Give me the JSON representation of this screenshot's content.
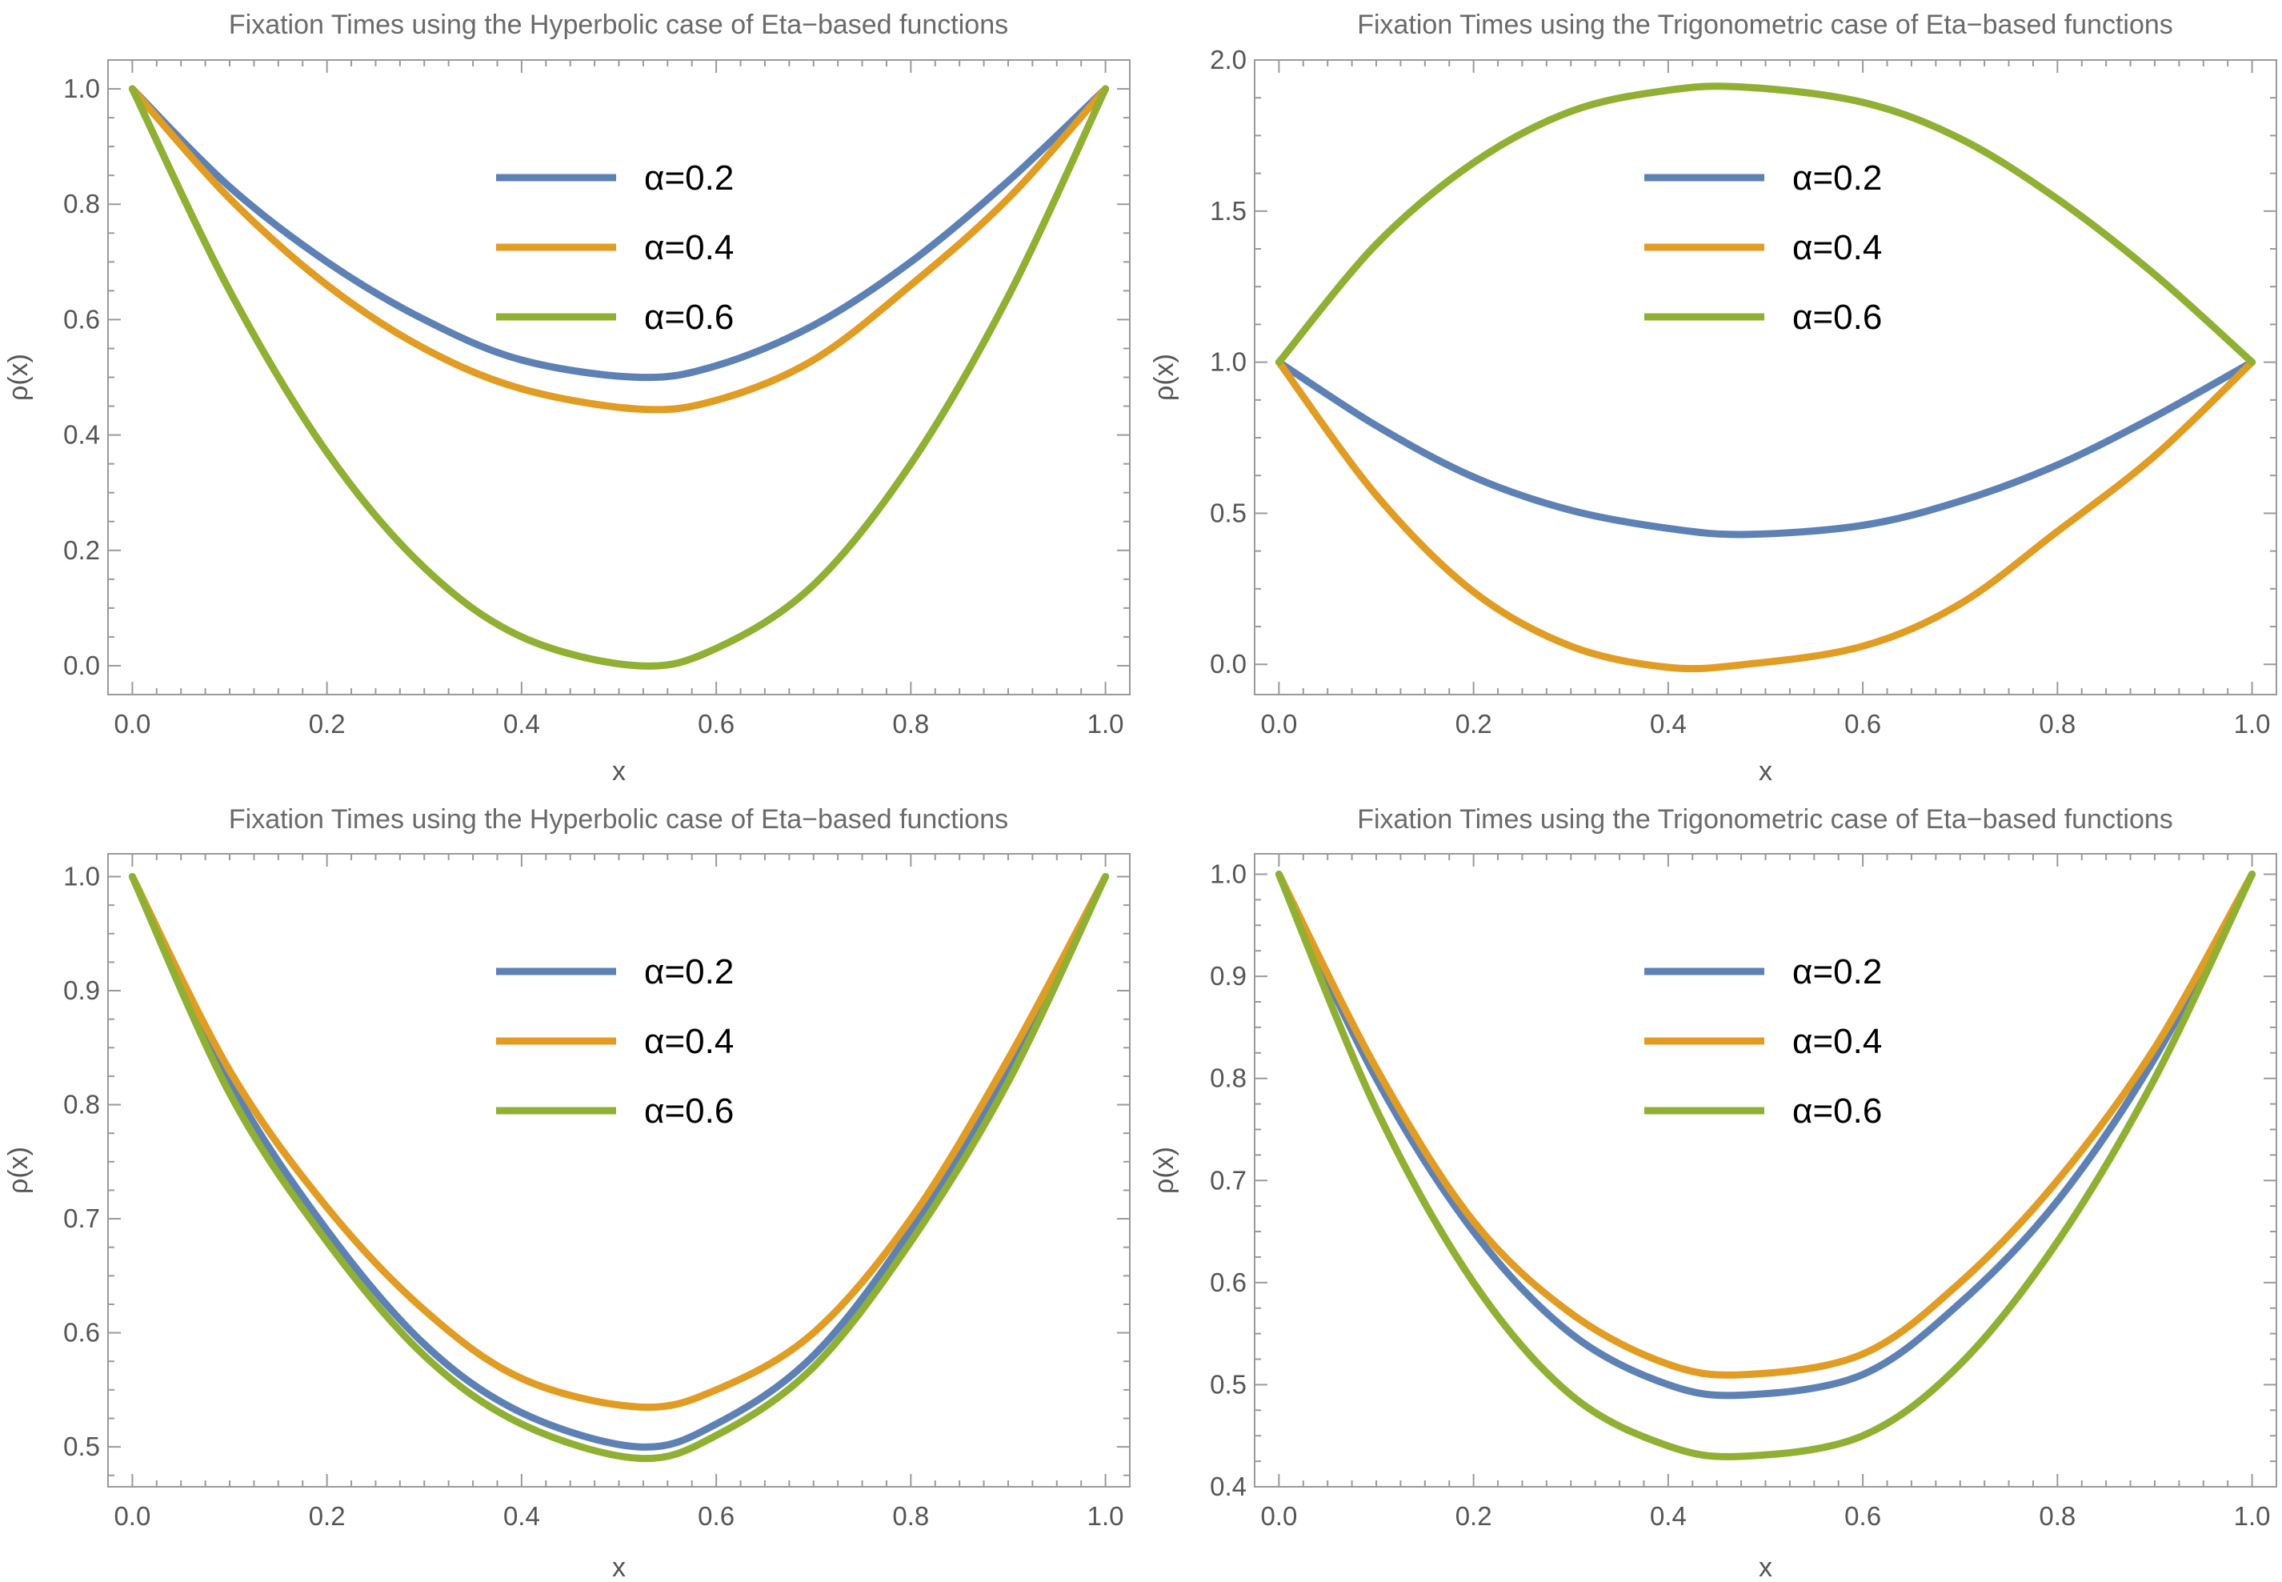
{
  "chart_data": [
    {
      "type": "line",
      "title": "Fixation Times using the Hyperbolic case of Eta−based functions",
      "xlabel": "x",
      "ylabel": "ρ(x)",
      "xlim": [
        -0.025,
        1.025
      ],
      "ylim": [
        -0.05,
        1.05
      ],
      "xticks": [
        "0.0",
        "0.2",
        "0.4",
        "0.6",
        "0.8",
        "1.0"
      ],
      "yticks": [
        "0.0",
        "0.2",
        "0.4",
        "0.6",
        "0.8",
        "1.0"
      ],
      "ytick_values": [
        0,
        0.2,
        0.4,
        0.6,
        0.8,
        1.0
      ],
      "legend_position": "upper-center",
      "series": [
        {
          "name": "α=0.2",
          "color": "#5E81B5",
          "x": [
            0,
            0.1,
            0.2,
            0.3,
            0.4,
            0.52,
            0.6,
            0.7,
            0.8,
            0.9,
            1.0
          ],
          "values": [
            1.0,
            0.83,
            0.7,
            0.6,
            0.53,
            0.5,
            0.52,
            0.59,
            0.7,
            0.84,
            1.0
          ]
        },
        {
          "name": "α=0.4",
          "color": "#E19C24",
          "x": [
            0,
            0.1,
            0.2,
            0.3,
            0.4,
            0.52,
            0.6,
            0.7,
            0.8,
            0.9,
            1.0
          ],
          "values": [
            1.0,
            0.81,
            0.66,
            0.55,
            0.48,
            0.445,
            0.46,
            0.53,
            0.66,
            0.81,
            1.0
          ]
        },
        {
          "name": "α=0.6",
          "color": "#8FB032",
          "x": [
            0,
            0.1,
            0.2,
            0.3,
            0.4,
            0.52,
            0.6,
            0.7,
            0.8,
            0.9,
            1.0
          ],
          "values": [
            1.0,
            0.65,
            0.37,
            0.17,
            0.05,
            0.0,
            0.03,
            0.14,
            0.35,
            0.64,
            1.0
          ]
        }
      ]
    },
    {
      "type": "line",
      "title": "Fixation Times using the Trigonometric case of Eta−based functions",
      "xlabel": "x",
      "ylabel": "ρ(x)",
      "xlim": [
        -0.025,
        1.025
      ],
      "ylim": [
        -0.1,
        2.0
      ],
      "xticks": [
        "0.0",
        "0.2",
        "0.4",
        "0.6",
        "0.8",
        "1.0"
      ],
      "yticks": [
        "0.0",
        "0.5",
        "1.0",
        "1.5",
        "2.0"
      ],
      "ytick_values": [
        0,
        0.5,
        1.0,
        1.5,
        2.0
      ],
      "legend_position": "upper-center",
      "series": [
        {
          "name": "α=0.2",
          "color": "#5E81B5",
          "x": [
            0,
            0.1,
            0.2,
            0.3,
            0.4,
            0.48,
            0.6,
            0.7,
            0.8,
            0.9,
            1.0
          ],
          "values": [
            1.0,
            0.79,
            0.62,
            0.51,
            0.45,
            0.43,
            0.46,
            0.54,
            0.66,
            0.82,
            1.0
          ]
        },
        {
          "name": "α=0.4",
          "color": "#E19C24",
          "x": [
            0,
            0.1,
            0.2,
            0.3,
            0.4,
            0.48,
            0.6,
            0.7,
            0.8,
            0.9,
            1.0
          ],
          "values": [
            1.0,
            0.56,
            0.24,
            0.06,
            -0.01,
            0.0,
            0.06,
            0.2,
            0.44,
            0.69,
            1.0
          ]
        },
        {
          "name": "α=0.6",
          "color": "#8FB032",
          "x": [
            0,
            0.1,
            0.2,
            0.3,
            0.4,
            0.48,
            0.6,
            0.7,
            0.8,
            0.9,
            1.0
          ],
          "values": [
            1.0,
            1.39,
            1.66,
            1.83,
            1.9,
            1.91,
            1.86,
            1.74,
            1.54,
            1.29,
            1.0
          ]
        }
      ]
    },
    {
      "type": "line",
      "title": "Fixation Times using the Hyperbolic case of Eta−based functions",
      "xlabel": "x",
      "ylabel": "ρ(x)",
      "xlim": [
        -0.025,
        1.025
      ],
      "ylim": [
        0.465,
        1.02
      ],
      "xticks": [
        "0.0",
        "0.2",
        "0.4",
        "0.6",
        "0.8",
        "1.0"
      ],
      "yticks": [
        "0.5",
        "0.6",
        "0.7",
        "0.8",
        "0.9",
        "1.0"
      ],
      "ytick_values": [
        0.5,
        0.6,
        0.7,
        0.8,
        0.9,
        1.0
      ],
      "legend_position": "upper-center",
      "series": [
        {
          "name": "α=0.2",
          "color": "#5E81B5",
          "x": [
            0,
            0.1,
            0.2,
            0.3,
            0.4,
            0.52,
            0.6,
            0.7,
            0.8,
            0.9,
            1.0
          ],
          "values": [
            1.0,
            0.82,
            0.69,
            0.59,
            0.53,
            0.5,
            0.52,
            0.58,
            0.69,
            0.83,
            1.0
          ]
        },
        {
          "name": "α=0.4",
          "color": "#E19C24",
          "x": [
            0,
            0.1,
            0.2,
            0.3,
            0.4,
            0.52,
            0.6,
            0.7,
            0.8,
            0.9,
            1.0
          ],
          "values": [
            1.0,
            0.83,
            0.71,
            0.62,
            0.56,
            0.535,
            0.55,
            0.6,
            0.7,
            0.84,
            1.0
          ]
        },
        {
          "name": "α=0.6",
          "color": "#8FB032",
          "x": [
            0,
            0.1,
            0.2,
            0.3,
            0.4,
            0.52,
            0.6,
            0.7,
            0.8,
            0.9,
            1.0
          ],
          "values": [
            1.0,
            0.81,
            0.68,
            0.58,
            0.52,
            0.49,
            0.51,
            0.57,
            0.68,
            0.82,
            1.0
          ]
        }
      ]
    },
    {
      "type": "line",
      "title": "Fixation Times using the Trigonometric case of Eta−based functions",
      "xlabel": "x",
      "ylabel": "ρ(x)",
      "xlim": [
        -0.025,
        1.025
      ],
      "ylim": [
        0.4,
        1.02
      ],
      "xticks": [
        "0.0",
        "0.2",
        "0.4",
        "0.6",
        "0.8",
        "1.0"
      ],
      "yticks": [
        "0.4",
        "0.5",
        "0.6",
        "0.7",
        "0.8",
        "0.9",
        "1.0"
      ],
      "ytick_values": [
        0.4,
        0.5,
        0.6,
        0.7,
        0.8,
        0.9,
        1.0
      ],
      "legend_position": "upper-center",
      "series": [
        {
          "name": "α=0.2",
          "color": "#5E81B5",
          "x": [
            0,
            0.1,
            0.2,
            0.3,
            0.4,
            0.48,
            0.6,
            0.7,
            0.8,
            0.9,
            1.0
          ],
          "values": [
            1.0,
            0.8,
            0.65,
            0.55,
            0.5,
            0.49,
            0.51,
            0.58,
            0.68,
            0.82,
            1.0
          ]
        },
        {
          "name": "α=0.4",
          "color": "#E19C24",
          "x": [
            0,
            0.1,
            0.2,
            0.3,
            0.4,
            0.48,
            0.6,
            0.7,
            0.8,
            0.9,
            1.0
          ],
          "values": [
            1.0,
            0.81,
            0.66,
            0.57,
            0.52,
            0.51,
            0.53,
            0.6,
            0.7,
            0.83,
            1.0
          ]
        },
        {
          "name": "α=0.6",
          "color": "#8FB032",
          "x": [
            0,
            0.1,
            0.2,
            0.3,
            0.4,
            0.48,
            0.6,
            0.7,
            0.8,
            0.9,
            1.0
          ],
          "values": [
            1.0,
            0.77,
            0.6,
            0.49,
            0.44,
            0.43,
            0.45,
            0.52,
            0.64,
            0.8,
            1.0
          ]
        }
      ]
    }
  ]
}
